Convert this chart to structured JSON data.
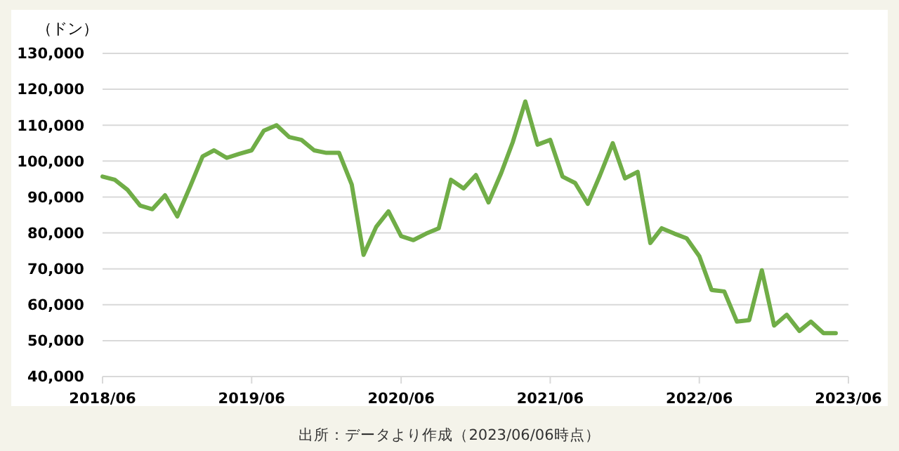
{
  "chart_data": {
    "type": "line",
    "ylabel": "（ドン）",
    "annotations": [
      "出所：データより作成（2023/06/06時点）"
    ],
    "x": [
      "2018-06",
      "2018-07",
      "2018-08",
      "2018-09",
      "2018-10",
      "2018-11",
      "2018-12",
      "2019-01",
      "2019-02",
      "2019-03",
      "2019-04",
      "2019-05",
      "2019-06",
      "2019-07",
      "2019-08",
      "2019-09",
      "2019-10",
      "2019-11",
      "2019-12",
      "2020-01",
      "2020-02",
      "2020-03",
      "2020-04",
      "2020-05",
      "2020-06",
      "2020-07",
      "2020-08",
      "2020-09",
      "2020-10",
      "2020-11",
      "2020-12",
      "2021-01",
      "2021-02",
      "2021-03",
      "2021-04",
      "2021-05",
      "2021-06",
      "2021-07",
      "2021-08",
      "2021-09",
      "2021-10",
      "2021-11",
      "2021-12",
      "2022-01",
      "2022-02",
      "2022-03",
      "2022-04",
      "2022-05",
      "2022-06",
      "2022-07",
      "2022-08",
      "2022-09",
      "2022-10",
      "2022-11",
      "2022-12",
      "2023-01",
      "2023-02",
      "2023-03",
      "2023-04",
      "2023-05"
    ],
    "series": [
      {
        "color": "#70ad47",
        "values": [
          95700,
          94800,
          92000,
          87600,
          86600,
          90500,
          84600,
          92800,
          101300,
          103000,
          100900,
          102000,
          103000,
          108500,
          110000,
          106700,
          105900,
          103000,
          102300,
          102300,
          93500,
          73900,
          81700,
          86000,
          79100,
          78000,
          79800,
          81300,
          94800,
          92400,
          96100,
          88500,
          96700,
          105200,
          116600,
          104600,
          105900,
          95700,
          93900,
          88100,
          96100,
          105000,
          95200,
          97000,
          77200,
          81300,
          79800,
          78500,
          73500,
          64100,
          63700,
          55300,
          55700,
          69600,
          54200,
          57200,
          52700,
          55300,
          52100,
          52100
        ]
      }
    ],
    "xlim": [
      "2018-06",
      "2023-06"
    ],
    "xticks": [
      {
        "value": "2018-06",
        "label": "2018/06"
      },
      {
        "value": "2019-06",
        "label": "2019/06"
      },
      {
        "value": "2020-06",
        "label": "2020/06"
      },
      {
        "value": "2021-06",
        "label": "2021/06"
      },
      {
        "value": "2022-06",
        "label": "2022/06"
      },
      {
        "value": "2023-06",
        "label": "2023/06"
      }
    ],
    "ylim": [
      40000,
      130000
    ],
    "yticks": [
      {
        "value": 40000,
        "label": "40,000"
      },
      {
        "value": 50000,
        "label": "50,000"
      },
      {
        "value": 60000,
        "label": "60,000"
      },
      {
        "value": 70000,
        "label": "70,000"
      },
      {
        "value": 80000,
        "label": "80,000"
      },
      {
        "value": 90000,
        "label": "90,000"
      },
      {
        "value": 100000,
        "label": "100,000"
      },
      {
        "value": 110000,
        "label": "110,000"
      },
      {
        "value": 120000,
        "label": "120,000"
      },
      {
        "value": 130000,
        "label": "130,000"
      }
    ],
    "grid": "y",
    "marker": "none",
    "line_style": "solid"
  }
}
